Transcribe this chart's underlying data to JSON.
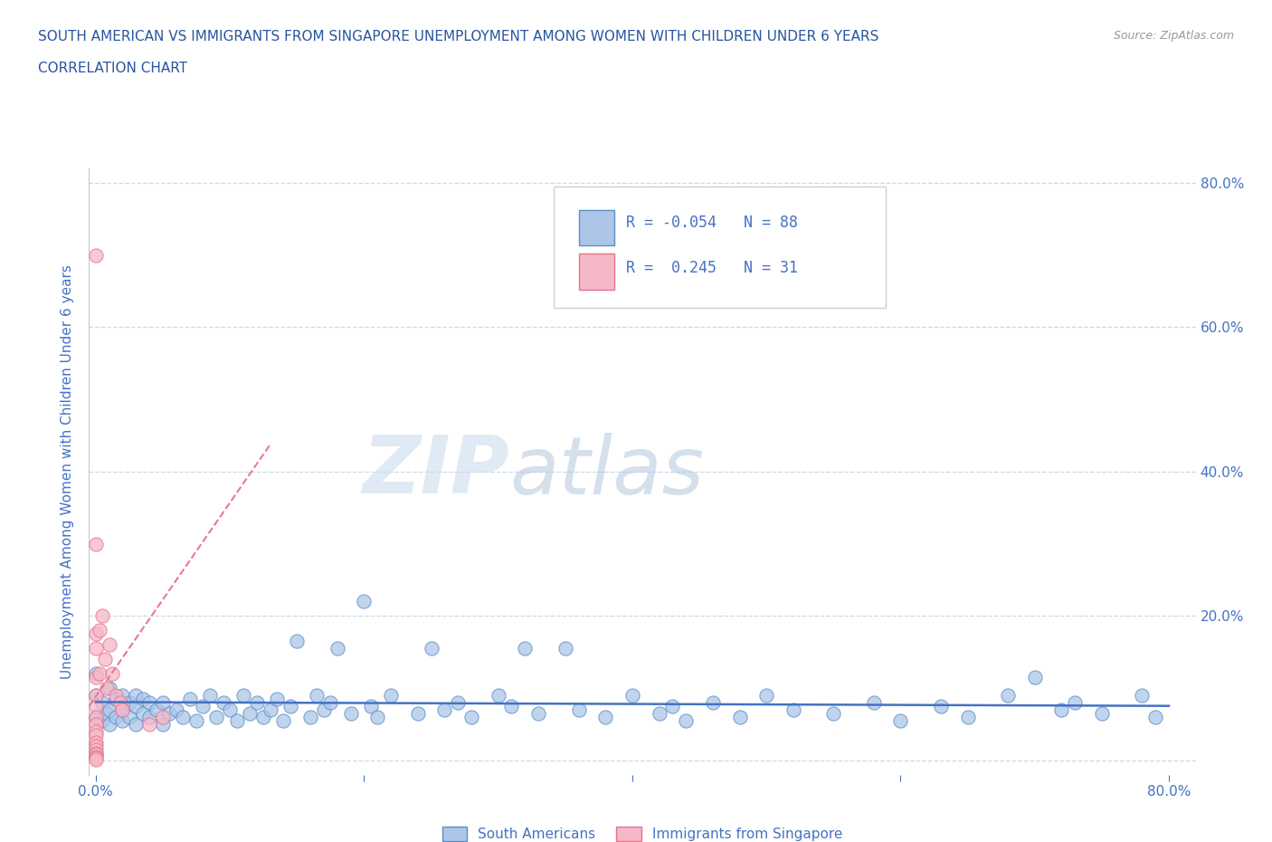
{
  "title_line1": "SOUTH AMERICAN VS IMMIGRANTS FROM SINGAPORE UNEMPLOYMENT AMONG WOMEN WITH CHILDREN UNDER 6 YEARS",
  "title_line2": "CORRELATION CHART",
  "source_text": "Source: ZipAtlas.com",
  "ylabel": "Unemployment Among Women with Children Under 6 years",
  "xlim": [
    -0.005,
    0.82
  ],
  "ylim": [
    -0.02,
    0.82
  ],
  "xticks": [
    0.0,
    0.2,
    0.4,
    0.6,
    0.8
  ],
  "yticks": [
    0.0,
    0.2,
    0.4,
    0.6,
    0.8
  ],
  "xticklabels": [
    "0.0%",
    "",
    "",
    "",
    "80.0%"
  ],
  "yticklabels_right": [
    "80.0%",
    "60.0%",
    "40.0%",
    "20.0%",
    ""
  ],
  "blue_color": "#adc6e8",
  "pink_color": "#f5b8c8",
  "blue_edge_color": "#5b8dc8",
  "pink_edge_color": "#e8708a",
  "blue_line_color": "#4472c4",
  "pink_line_color": "#e87898",
  "background_color": "#ffffff",
  "grid_color": "#c8d4e8",
  "title_color": "#2855a0",
  "axis_color": "#4472c4",
  "watermark_zip_color": "#dce8f4",
  "watermark_atlas_color": "#c8ddf0",
  "legend_label1": "South Americans",
  "legend_label2": "Immigrants from Singapore",
  "blue_R": -0.054,
  "blue_N": 88,
  "pink_R": 0.245,
  "pink_N": 31,
  "blue_x": [
    0.0,
    0.0,
    0.0,
    0.005,
    0.005,
    0.008,
    0.01,
    0.01,
    0.01,
    0.015,
    0.015,
    0.02,
    0.02,
    0.02,
    0.025,
    0.025,
    0.03,
    0.03,
    0.03,
    0.035,
    0.035,
    0.04,
    0.04,
    0.045,
    0.05,
    0.05,
    0.055,
    0.06,
    0.065,
    0.07,
    0.075,
    0.08,
    0.085,
    0.09,
    0.095,
    0.1,
    0.105,
    0.11,
    0.115,
    0.12,
    0.125,
    0.13,
    0.135,
    0.14,
    0.145,
    0.15,
    0.16,
    0.165,
    0.17,
    0.175,
    0.18,
    0.19,
    0.2,
    0.205,
    0.21,
    0.22,
    0.24,
    0.25,
    0.26,
    0.27,
    0.28,
    0.3,
    0.31,
    0.32,
    0.33,
    0.35,
    0.36,
    0.38,
    0.4,
    0.42,
    0.43,
    0.44,
    0.46,
    0.48,
    0.5,
    0.52,
    0.55,
    0.58,
    0.6,
    0.63,
    0.65,
    0.68,
    0.7,
    0.72,
    0.73,
    0.75,
    0.78,
    0.79
  ],
  "blue_y": [
    0.06,
    0.09,
    0.12,
    0.055,
    0.08,
    0.065,
    0.05,
    0.07,
    0.1,
    0.06,
    0.085,
    0.055,
    0.07,
    0.09,
    0.06,
    0.08,
    0.05,
    0.075,
    0.09,
    0.065,
    0.085,
    0.06,
    0.08,
    0.07,
    0.05,
    0.08,
    0.065,
    0.07,
    0.06,
    0.085,
    0.055,
    0.075,
    0.09,
    0.06,
    0.08,
    0.07,
    0.055,
    0.09,
    0.065,
    0.08,
    0.06,
    0.07,
    0.085,
    0.055,
    0.075,
    0.165,
    0.06,
    0.09,
    0.07,
    0.08,
    0.155,
    0.065,
    0.22,
    0.075,
    0.06,
    0.09,
    0.065,
    0.155,
    0.07,
    0.08,
    0.06,
    0.09,
    0.075,
    0.155,
    0.065,
    0.155,
    0.07,
    0.06,
    0.09,
    0.065,
    0.075,
    0.055,
    0.08,
    0.06,
    0.09,
    0.07,
    0.065,
    0.08,
    0.055,
    0.075,
    0.06,
    0.09,
    0.115,
    0.07,
    0.08,
    0.065,
    0.09,
    0.06
  ],
  "pink_x": [
    0.0,
    0.0,
    0.0,
    0.0,
    0.0,
    0.0,
    0.0,
    0.0,
    0.0,
    0.0,
    0.0,
    0.0,
    0.0,
    0.0,
    0.0,
    0.0,
    0.0,
    0.0,
    0.0,
    0.003,
    0.003,
    0.005,
    0.007,
    0.008,
    0.01,
    0.012,
    0.015,
    0.018,
    0.02,
    0.04,
    0.05
  ],
  "pink_y": [
    0.7,
    0.3,
    0.175,
    0.155,
    0.115,
    0.09,
    0.075,
    0.06,
    0.05,
    0.04,
    0.035,
    0.025,
    0.02,
    0.015,
    0.01,
    0.008,
    0.005,
    0.003,
    0.001,
    0.18,
    0.12,
    0.2,
    0.14,
    0.1,
    0.16,
    0.12,
    0.09,
    0.08,
    0.07,
    0.05,
    0.06
  ]
}
